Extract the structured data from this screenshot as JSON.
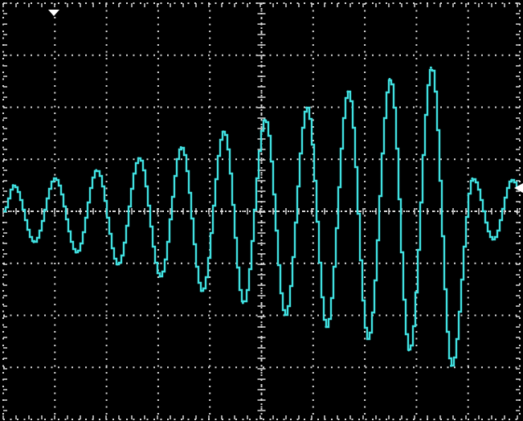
{
  "screen": {
    "background": "#000000",
    "grid_color": "#d8d8d8",
    "trace_color": "#40e0e0"
  },
  "markers": {
    "trigger_icon": "trigger-position-down-arrow-icon",
    "ground_icon": "channel-ground-level-arrow-icon"
  },
  "chart_data": {
    "type": "line",
    "title": "",
    "xlabel": "",
    "ylabel": "",
    "xlim": [
      0,
      10
    ],
    "ylim": [
      -4,
      4
    ],
    "x_divisions": 10,
    "y_divisions": 8,
    "grid": "dotted",
    "series": [
      {
        "name": "",
        "peaks": [
          {
            "x": 0.19,
            "y": 0.5
          },
          {
            "x": 0.99,
            "y": 0.63
          },
          {
            "x": 1.8,
            "y": 0.79
          },
          {
            "x": 2.62,
            "y": 1.02
          },
          {
            "x": 3.44,
            "y": 1.23
          },
          {
            "x": 4.26,
            "y": 1.53
          },
          {
            "x": 5.06,
            "y": 1.76
          },
          {
            "x": 5.87,
            "y": 1.99
          },
          {
            "x": 6.67,
            "y": 2.3
          },
          {
            "x": 7.48,
            "y": 2.54
          },
          {
            "x": 8.28,
            "y": 2.76
          },
          {
            "x": 9.08,
            "y": 0.63
          },
          {
            "x": 9.84,
            "y": 0.6
          }
        ],
        "troughs": [
          {
            "x": 0.59,
            "y": -0.59
          },
          {
            "x": 1.41,
            "y": -0.79
          },
          {
            "x": 2.21,
            "y": -1.02
          },
          {
            "x": 3.03,
            "y": -1.25
          },
          {
            "x": 3.84,
            "y": -1.53
          },
          {
            "x": 4.64,
            "y": -1.76
          },
          {
            "x": 5.45,
            "y": -1.99
          },
          {
            "x": 6.25,
            "y": -2.22
          },
          {
            "x": 7.05,
            "y": -2.45
          },
          {
            "x": 7.85,
            "y": -2.67
          },
          {
            "x": 8.67,
            "y": -2.97
          },
          {
            "x": 9.47,
            "y": -0.54
          }
        ],
        "start": {
          "x": 0.0,
          "y": 0.0
        },
        "end": {
          "x": 10.0,
          "y": 0.4
        }
      }
    ]
  }
}
